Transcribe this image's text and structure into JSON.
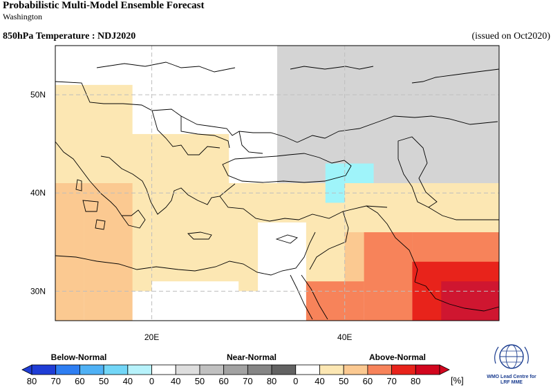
{
  "header": {
    "title": "Probabilistic Multi-Model Ensemble Forecast",
    "subtitle": "Washington",
    "variable_title": "850hPa Temperature : NDJ2020",
    "issued": "(issued on Oct2020)"
  },
  "map": {
    "region": "Mediterranean / Middle East",
    "projection": "lat-lon",
    "lon_range": [
      10,
      56
    ],
    "lat_range": [
      27,
      55
    ],
    "lat_labels": [
      "50N",
      "40N",
      "30N"
    ],
    "lat_values": [
      50,
      40,
      30
    ],
    "lon_labels": [
      "20E",
      "40E"
    ],
    "lon_values": [
      20,
      40
    ],
    "gridlines": true,
    "colors": {
      "ocean": "#ffffff",
      "above_40": "#fce7b3",
      "above_50": "#fbc991",
      "above_60": "#f7835a",
      "above_70": "#e8231b",
      "above_80": "#cf1630",
      "normal_40": "#d4d4d4",
      "below_40": "#9ff4fa",
      "coast": "#000000"
    }
  },
  "legend": {
    "below_label": "Below-Normal",
    "near_label": "Near-Normal",
    "above_label": "Above-Normal",
    "unit": "[%]",
    "ticks": [
      "80",
      "70",
      "60",
      "50",
      "40",
      "0",
      "40",
      "50",
      "60",
      "70",
      "80",
      "0",
      "40",
      "50",
      "60",
      "70",
      "80"
    ],
    "colors": [
      "#1f3dd6",
      "#2e7ef2",
      "#4fb1f5",
      "#72d6f7",
      "#b7f2fb",
      "#ffffff",
      "#dedede",
      "#c0c0c0",
      "#a2a2a2",
      "#858585",
      "#626262",
      "#ffffff",
      "#fce7b3",
      "#fbc991",
      "#f7835a",
      "#e8231b",
      "#d2061e"
    ]
  },
  "logo": {
    "name": "wmo-logo",
    "caption_1": "WMO Lead Centre for",
    "caption_2": "LRF MME"
  }
}
